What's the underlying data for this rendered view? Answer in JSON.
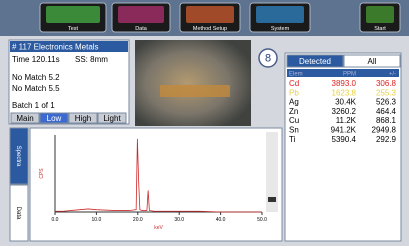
{
  "toolbar": {
    "buttons": [
      "Test",
      "Data",
      "Method Setup",
      "System",
      "Start"
    ]
  },
  "info": {
    "title": "# 117 Electronics Metals",
    "time": "Time 120.11s",
    "spot": "SS: 8mm",
    "lines": [
      "No Match 5.2",
      "No Match 5.5"
    ],
    "batch": "Batch 1 of 1",
    "tabs": [
      "Main",
      "Low",
      "High",
      "Light"
    ]
  },
  "badge": "8",
  "results": {
    "tabs": [
      "Detected",
      "All"
    ],
    "header": [
      "Elem",
      "PPM",
      "+/-"
    ],
    "rows": [
      {
        "cells": [
          "Cd",
          "3893.0",
          "306.8"
        ],
        "color": "#e02020"
      },
      {
        "cells": [
          "Pb",
          "1623.8",
          "255.3"
        ],
        "color": "#e8d040"
      },
      {
        "cells": [
          "Ag",
          "30.4K",
          "526.3"
        ],
        "color": "#000000"
      },
      {
        "cells": [
          "Zn",
          "3260.2",
          "464.4"
        ],
        "color": "#000000"
      },
      {
        "cells": [
          "Cu",
          "11.2K",
          "868.1"
        ],
        "color": "#000000"
      },
      {
        "cells": [
          "Sn",
          "941.2K",
          "2949.8"
        ],
        "color": "#000000"
      },
      {
        "cells": [
          "Ti",
          "5390.4",
          "292.9"
        ],
        "color": "#000000"
      }
    ]
  },
  "side_tabs": [
    "Spectra",
    "Data"
  ],
  "spectrum": {
    "x_label": "keV",
    "y_label": "CPS",
    "color": "#cc2a2a",
    "xlim": [
      0,
      50
    ],
    "ylim": [
      0,
      100
    ],
    "xticks": [
      {
        "value": 0,
        "label": "0.0"
      },
      {
        "value": 10,
        "label": "10.0"
      },
      {
        "value": 20,
        "label": "20.0"
      },
      {
        "value": 30,
        "label": "30.0"
      },
      {
        "value": 40,
        "label": "40.0"
      },
      {
        "value": 50,
        "label": "50.0"
      }
    ],
    "x": [
      0,
      2,
      4,
      6,
      8,
      10,
      14,
      18,
      19.6,
      19.9,
      20.2,
      20.5,
      21,
      22.2,
      22.5,
      22.8,
      24,
      26,
      30,
      35,
      40,
      45,
      50
    ],
    "values": [
      1,
      1,
      2,
      3,
      4,
      3,
      2,
      2,
      3,
      95,
      40,
      3,
      2,
      2,
      28,
      2,
      1,
      1,
      1,
      1,
      0,
      0,
      0
    ]
  }
}
